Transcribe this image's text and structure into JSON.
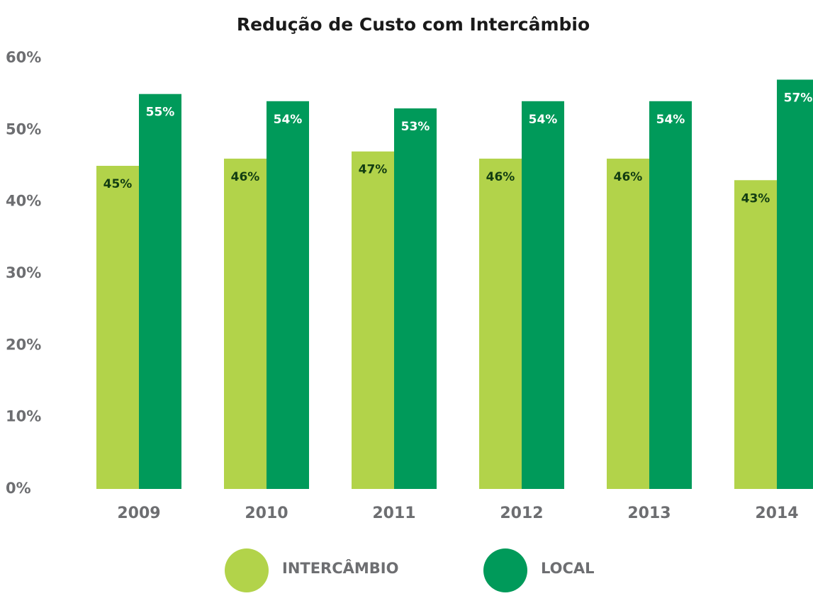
{
  "chart_data": {
    "type": "bar",
    "title": "Redução de Custo com Intercâmbio",
    "categories": [
      "2009",
      "2010",
      "2011",
      "2012",
      "2013",
      "2014"
    ],
    "series": [
      {
        "name": "INTERCÂMBIO",
        "color": "#b2d34a",
        "values": [
          45,
          46,
          47,
          46,
          46,
          43
        ],
        "value_labels": [
          "45%",
          "46%",
          "47%",
          "46%",
          "46%",
          "43%"
        ]
      },
      {
        "name": "LOCAL",
        "color": "#009a5a",
        "values": [
          55,
          54,
          53,
          54,
          54,
          57
        ],
        "value_labels": [
          "55%",
          "54%",
          "53%",
          "54%",
          "54%",
          "57%"
        ]
      }
    ],
    "ylim": [
      0,
      60
    ],
    "yticks": [
      {
        "value": 0,
        "label": "0%"
      },
      {
        "value": 10,
        "label": "10%"
      },
      {
        "value": 20,
        "label": "20%"
      },
      {
        "value": 30,
        "label": "30%"
      },
      {
        "value": 40,
        "label": "40%"
      },
      {
        "value": 50,
        "label": "50%"
      },
      {
        "value": 60,
        "label": "60%"
      }
    ],
    "grid": false,
    "legend": "bottom"
  }
}
